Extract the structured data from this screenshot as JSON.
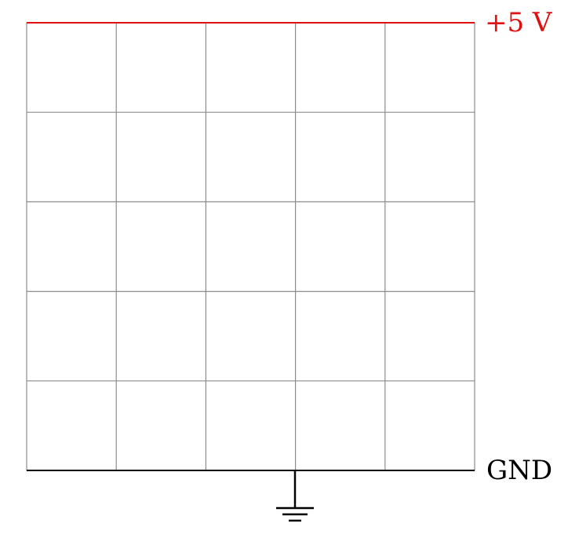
{
  "grid": {
    "rows": 5,
    "columns": 5,
    "line_color": "#8c8c8c"
  },
  "supply": {
    "label": "+5 V",
    "color": "#e01010"
  },
  "ground": {
    "label": "GND",
    "color": "#000000",
    "symbol_icon": "ground-symbol-icon"
  }
}
